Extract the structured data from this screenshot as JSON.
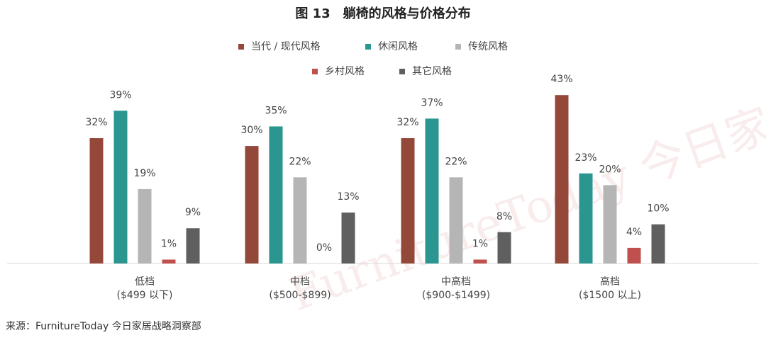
{
  "chart_data": {
    "type": "bar",
    "title": "图 13　躺椅的风格与价格分布",
    "categories": [
      "低档",
      "中档",
      "中高档",
      "高档"
    ],
    "category_sublabels": [
      "($499 以下)",
      "($500-$899)",
      "($900-$1499)",
      "($1500 以上)"
    ],
    "series": [
      {
        "name": "当代 / 现代风格",
        "color": "#944839",
        "values": [
          32,
          30,
          32,
          43
        ],
        "value_labels": [
          "32%",
          "30%",
          "32%",
          "43%"
        ]
      },
      {
        "name": "休闲风格",
        "color": "#2b9690",
        "values": [
          39,
          35,
          37,
          23
        ],
        "value_labels": [
          "39%",
          "35%",
          "37%",
          "23%"
        ]
      },
      {
        "name": "传统风格",
        "color": "#b5b5b5",
        "values": [
          19,
          22,
          22,
          20
        ],
        "value_labels": [
          "19%",
          "22%",
          "22%",
          "20%"
        ]
      },
      {
        "name": "乡村风格",
        "color": "#c0504d",
        "values": [
          1,
          0,
          1,
          4
        ],
        "value_labels": [
          "1%",
          "0%",
          "1%",
          "4%"
        ]
      },
      {
        "name": "其它风格",
        "color": "#5f5f5f",
        "values": [
          9,
          13,
          8,
          10
        ],
        "value_labels": [
          "9%",
          "13%",
          "8%",
          "10%"
        ]
      }
    ],
    "watermark": "FurnitureToday 今日家居",
    "source": "来源：FurnitureToday 今日家居战略洞察部"
  }
}
